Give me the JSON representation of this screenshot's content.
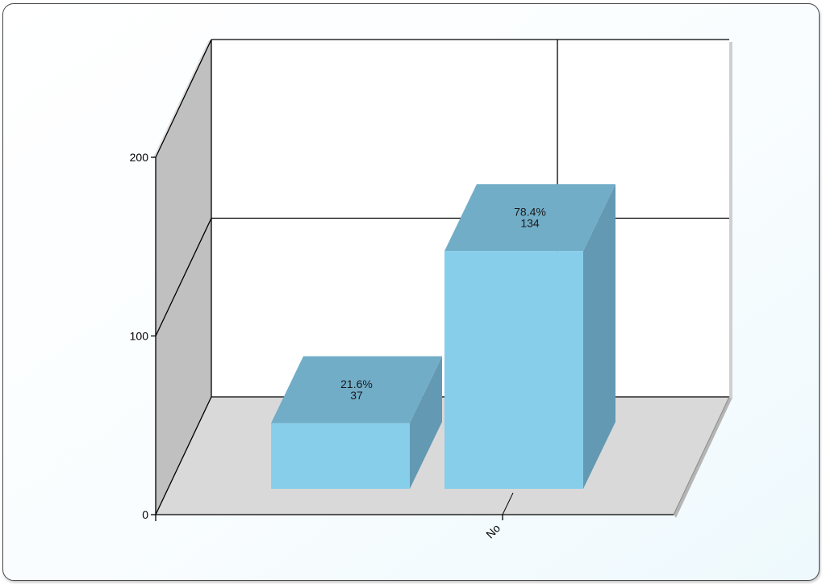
{
  "chart_data": {
    "type": "bar",
    "style": "3d-column",
    "categories": [
      "",
      "No"
    ],
    "values": [
      37,
      134
    ],
    "percent_labels": [
      "21.6%",
      "78.4%"
    ],
    "value_labels": [
      "37",
      "134"
    ],
    "title": "",
    "xlabel": "",
    "ylabel": "",
    "ylim": [
      0,
      200
    ],
    "yticks": [
      0,
      100,
      200
    ],
    "xtick_labels": [
      "No"
    ],
    "grid": true,
    "legend": "none",
    "colors": {
      "bar_front": "#87ceeb",
      "bar_top": "#72adc8",
      "bar_side": "#6399b2",
      "floor": "#d9d9d9",
      "left_wall": "#c0c0c0",
      "back_wall": "#ffffff",
      "grid": "#000000"
    }
  }
}
